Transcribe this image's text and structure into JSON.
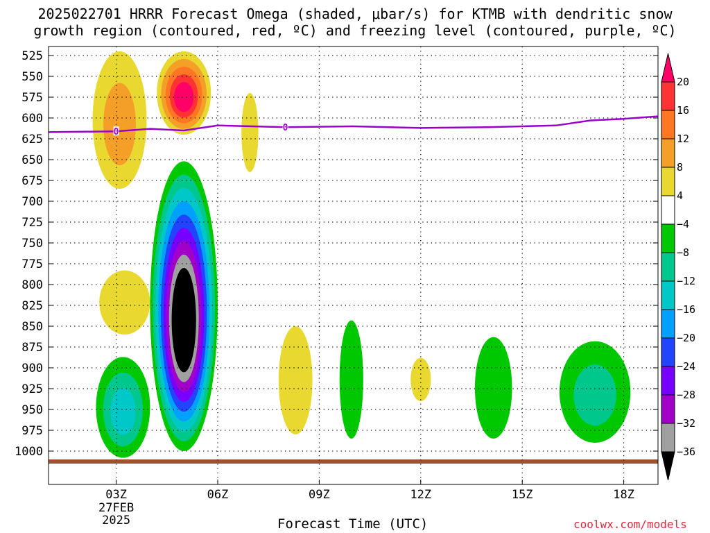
{
  "title": {
    "line1": "2025022701 HRRR Forecast Omega (shaded, μbar/s) for KTMB with dendritic snow",
    "line2": "growth region (contoured, red, ºC) and freezing level (contoured, purple, ºC)"
  },
  "watermark": "coolwx.com/models",
  "colors": {
    "freezing_level": "#9900cc",
    "terrain": "#a0522d"
  },
  "chart_data": {
    "type": "heatmap",
    "title": "2025022701 HRRR Forecast Omega (shaded, μbar/s) for KTMB with dendritic snow growth region (contoured, red, ºC) and freezing level (contoured, purple, ºC)",
    "xlabel": "Forecast Time (UTC)",
    "ylabel": "",
    "x_range_hours": [
      1,
      19
    ],
    "x_ticks": [
      {
        "hour": 3,
        "label": "03Z",
        "sub1": "27FEB",
        "sub2": "2025"
      },
      {
        "hour": 6,
        "label": "06Z"
      },
      {
        "hour": 9,
        "label": "09Z"
      },
      {
        "hour": 12,
        "label": "12Z"
      },
      {
        "hour": 15,
        "label": "15Z"
      },
      {
        "hour": 18,
        "label": "18Z"
      }
    ],
    "y_axis": "pressure (mb), inverted",
    "y_ticks": [
      525,
      550,
      575,
      600,
      625,
      650,
      675,
      700,
      725,
      750,
      775,
      800,
      825,
      850,
      875,
      900,
      925,
      950,
      975,
      1000
    ],
    "grid": true,
    "colorbar": {
      "units": "μbar/s",
      "labels": [
        20,
        16,
        12,
        8,
        4,
        -4,
        -8,
        -12,
        -16,
        -20,
        -24,
        -28,
        -32,
        -36
      ],
      "colors": [
        "#ff0066",
        "#ff3333",
        "#ff7722",
        "#f4a028",
        "#e8d830",
        "#ffffff",
        "#00c800",
        "#00c88c",
        "#00c8c8",
        "#00a0ff",
        "#2244ff",
        "#7700ff",
        "#a000c8",
        "#a0a0a0",
        "#000000"
      ]
    },
    "freezing_level": {
      "label": "0",
      "label_hours": [
        3.0,
        8.0
      ],
      "points": [
        [
          1,
          617
        ],
        [
          3,
          616
        ],
        [
          4,
          613
        ],
        [
          5,
          615
        ],
        [
          6,
          609
        ],
        [
          7,
          610
        ],
        [
          8,
          611
        ],
        [
          10,
          610
        ],
        [
          12,
          612
        ],
        [
          14,
          611
        ],
        [
          16,
          609
        ],
        [
          17,
          603
        ],
        [
          18,
          601
        ],
        [
          19,
          598
        ]
      ]
    },
    "regions": [
      {
        "sign": "up",
        "hour_range": [
          2.3,
          3.9
        ],
        "p_range": [
          520,
          685
        ],
        "min_level": 4,
        "peak": 8
      },
      {
        "sign": "up",
        "hour_range": [
          4.2,
          5.8
        ],
        "p_range": [
          520,
          620
        ],
        "min_level": 4,
        "peak": 20
      },
      {
        "sign": "up",
        "hour_range": [
          6.7,
          7.2
        ],
        "p_range": [
          570,
          665
        ],
        "min_level": 4,
        "peak": 4
      },
      {
        "sign": "up",
        "hour_range": [
          2.5,
          4.0
        ],
        "p_range": [
          783,
          860
        ],
        "min_level": 4,
        "peak": 4
      },
      {
        "sign": "up",
        "hour_range": [
          7.8,
          8.8
        ],
        "p_range": [
          850,
          980
        ],
        "min_level": 4,
        "peak": 4
      },
      {
        "sign": "up",
        "hour_range": [
          11.7,
          12.3
        ],
        "p_range": [
          888,
          940
        ],
        "min_level": 4,
        "peak": 4
      },
      {
        "sign": "down",
        "hour_range": [
          4.0,
          6.0
        ],
        "p_range": [
          652,
          1000
        ],
        "min_level": -4,
        "peak": -40
      },
      {
        "sign": "down",
        "hour_range": [
          2.4,
          4.0
        ],
        "p_range": [
          887,
          1008
        ],
        "min_level": -4,
        "peak": -12
      },
      {
        "sign": "down",
        "hour_range": [
          9.6,
          10.3
        ],
        "p_range": [
          843,
          985
        ],
        "min_level": -4,
        "peak": -4
      },
      {
        "sign": "down",
        "hour_range": [
          13.6,
          14.7
        ],
        "p_range": [
          863,
          985
        ],
        "min_level": -4,
        "peak": -4
      },
      {
        "sign": "down",
        "hour_range": [
          16.1,
          18.2
        ],
        "p_range": [
          868,
          990
        ],
        "min_level": -4,
        "peak": -8
      }
    ]
  }
}
